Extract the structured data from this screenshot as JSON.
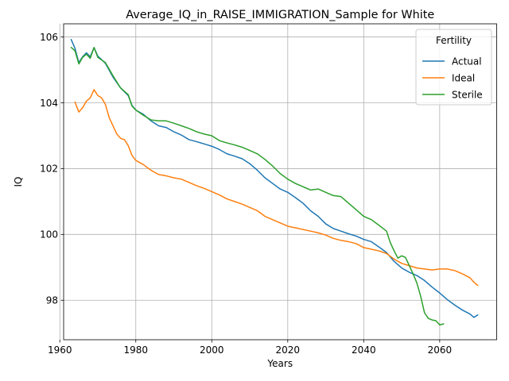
{
  "chart_data": {
    "type": "line",
    "title": "Average_IQ_in_RAISE_IMMIGRATION_Sample for White",
    "xlabel": "Years",
    "ylabel": "IQ",
    "xlim": [
      1961,
      2075
    ],
    "ylim": [
      96.8,
      106.4
    ],
    "xticks": [
      1960,
      1980,
      2000,
      2020,
      2040,
      2060
    ],
    "yticks": [
      98,
      100,
      102,
      104,
      106
    ],
    "grid": true,
    "legend": {
      "title": "Fertility",
      "placement": "top-right"
    },
    "series": [
      {
        "name": "Actual",
        "color": "#1f77b4",
        "x": [
          1963,
          1964,
          1965,
          1966,
          1967,
          1968,
          1969,
          1970,
          1972,
          1974,
          1976,
          1978,
          1979,
          1980,
          1982,
          1984,
          1986,
          1988,
          1990,
          1992,
          1994,
          1996,
          1998,
          2000,
          2002,
          2004,
          2006,
          2008,
          2010,
          2012,
          2014,
          2016,
          2018,
          2020,
          2022,
          2024,
          2026,
          2028,
          2030,
          2032,
          2034,
          2036,
          2038,
          2040,
          2042,
          2044,
          2046,
          2048,
          2050,
          2052,
          2054,
          2056,
          2058,
          2060,
          2062,
          2064,
          2066,
          2068,
          2069,
          2070
        ],
        "values": [
          105.92,
          105.65,
          105.22,
          105.4,
          105.52,
          105.4,
          105.68,
          105.42,
          105.2,
          104.78,
          104.45,
          104.22,
          103.92,
          103.78,
          103.65,
          103.45,
          103.3,
          103.25,
          103.12,
          103.02,
          102.88,
          102.82,
          102.75,
          102.68,
          102.58,
          102.45,
          102.38,
          102.3,
          102.15,
          101.95,
          101.72,
          101.55,
          101.38,
          101.28,
          101.12,
          100.95,
          100.72,
          100.55,
          100.32,
          100.18,
          100.1,
          100.02,
          99.95,
          99.85,
          99.78,
          99.62,
          99.45,
          99.18,
          98.98,
          98.85,
          98.75,
          98.6,
          98.4,
          98.22,
          98.02,
          97.85,
          97.7,
          97.58,
          97.48,
          97.55
        ]
      },
      {
        "name": "Ideal",
        "color": "#ff7f0e",
        "x": [
          1964,
          1965,
          1966,
          1967,
          1968,
          1969,
          1970,
          1971,
          1972,
          1973,
          1974,
          1975,
          1976,
          1977,
          1978,
          1979,
          1980,
          1982,
          1984,
          1986,
          1988,
          1990,
          1992,
          1994,
          1996,
          1998,
          2000,
          2002,
          2004,
          2006,
          2008,
          2010,
          2012,
          2014,
          2016,
          2018,
          2020,
          2022,
          2024,
          2026,
          2028,
          2030,
          2032,
          2034,
          2036,
          2038,
          2040,
          2042,
          2044,
          2046,
          2048,
          2050,
          2052,
          2054,
          2056,
          2058,
          2060,
          2062,
          2064,
          2066,
          2068,
          2069,
          2070
        ],
        "values": [
          104.02,
          103.72,
          103.85,
          104.05,
          104.15,
          104.4,
          104.22,
          104.15,
          103.95,
          103.55,
          103.3,
          103.05,
          102.92,
          102.88,
          102.7,
          102.4,
          102.25,
          102.12,
          101.95,
          101.82,
          101.78,
          101.72,
          101.68,
          101.58,
          101.48,
          101.4,
          101.3,
          101.2,
          101.08,
          101.0,
          100.92,
          100.82,
          100.72,
          100.55,
          100.45,
          100.35,
          100.25,
          100.2,
          100.15,
          100.1,
          100.05,
          99.98,
          99.88,
          99.82,
          99.78,
          99.72,
          99.6,
          99.55,
          99.5,
          99.42,
          99.25,
          99.12,
          99.05,
          98.98,
          98.95,
          98.92,
          98.95,
          98.95,
          98.9,
          98.8,
          98.68,
          98.55,
          98.45
        ]
      },
      {
        "name": "Sterile",
        "color": "#2ca02c",
        "x": [
          1963,
          1964,
          1965,
          1966,
          1967,
          1968,
          1969,
          1970,
          1972,
          1974,
          1976,
          1978,
          1979,
          1980,
          1982,
          1984,
          1986,
          1988,
          1990,
          1992,
          1994,
          1996,
          1998,
          2000,
          2002,
          2004,
          2006,
          2008,
          2010,
          2012,
          2014,
          2016,
          2018,
          2020,
          2022,
          2024,
          2026,
          2028,
          2030,
          2032,
          2034,
          2036,
          2038,
          2040,
          2042,
          2044,
          2046,
          2047,
          2048,
          2049,
          2050,
          2051,
          2052,
          2053,
          2054,
          2055,
          2056,
          2057,
          2058,
          2059,
          2060,
          2061
        ],
        "values": [
          105.68,
          105.58,
          105.18,
          105.38,
          105.48,
          105.35,
          105.68,
          105.38,
          105.22,
          104.82,
          104.45,
          104.25,
          103.9,
          103.78,
          103.62,
          103.48,
          103.45,
          103.45,
          103.38,
          103.3,
          103.22,
          103.12,
          103.05,
          103.0,
          102.85,
          102.78,
          102.72,
          102.65,
          102.55,
          102.45,
          102.28,
          102.08,
          101.85,
          101.68,
          101.55,
          101.45,
          101.35,
          101.38,
          101.28,
          101.18,
          101.15,
          100.95,
          100.75,
          100.55,
          100.45,
          100.28,
          100.1,
          99.75,
          99.5,
          99.28,
          99.35,
          99.3,
          99.05,
          98.8,
          98.52,
          98.12,
          97.62,
          97.45,
          97.4,
          97.38,
          97.25,
          97.28
        ]
      }
    ]
  }
}
